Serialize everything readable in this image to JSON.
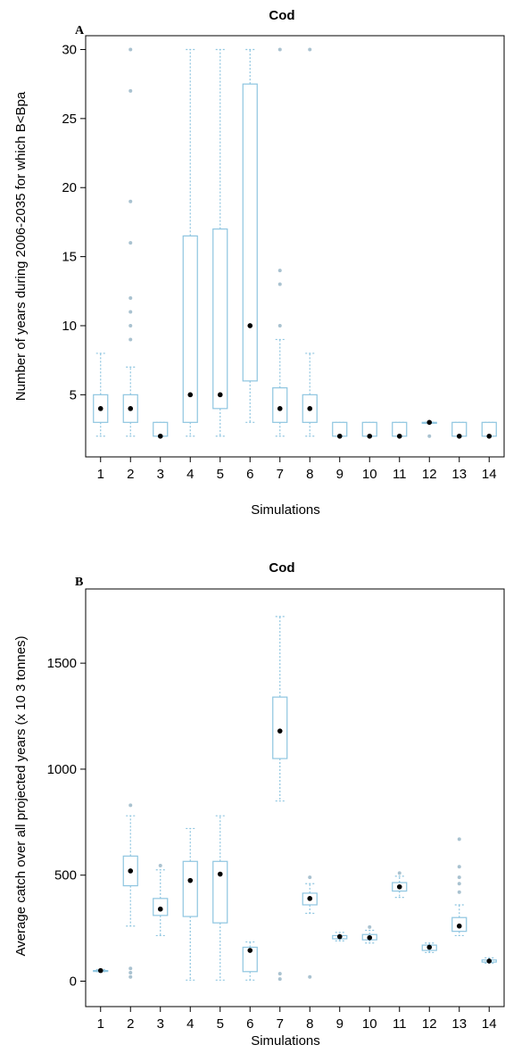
{
  "chart_data": [
    {
      "type": "box",
      "panel_label": "A",
      "title": "Cod",
      "xlabel": "Simulations",
      "ylabel": "Number of years during 2006-2035 for which B<Bpa",
      "categories": [
        "1",
        "2",
        "3",
        "4",
        "5",
        "6",
        "7",
        "8",
        "9",
        "10",
        "11",
        "12",
        "13",
        "14"
      ],
      "ylim": [
        0.5,
        31
      ],
      "yticks": [
        5,
        10,
        15,
        20,
        25,
        30
      ],
      "grid": false,
      "colors": {
        "box": "#8ec5e0",
        "whisker": "#8ec5e0",
        "outlier": "#a9c2d0",
        "median": "#000000"
      },
      "boxes": [
        {
          "q1": 3,
          "q3": 5,
          "median": 4,
          "whisker_low": 2,
          "whisker_high": 8,
          "outliers": []
        },
        {
          "q1": 3,
          "q3": 5,
          "median": 4,
          "whisker_low": 2,
          "whisker_high": 7,
          "outliers": [
            9,
            10,
            11,
            12,
            16,
            19,
            27,
            30
          ]
        },
        {
          "q1": 2,
          "q3": 3,
          "median": 2,
          "whisker_low": 2,
          "whisker_high": 3,
          "outliers": []
        },
        {
          "q1": 3,
          "q3": 16.5,
          "median": 5,
          "whisker_low": 2,
          "whisker_high": 30,
          "outliers": []
        },
        {
          "q1": 4,
          "q3": 17,
          "median": 5,
          "whisker_low": 2,
          "whisker_high": 30,
          "outliers": []
        },
        {
          "q1": 6,
          "q3": 27.5,
          "median": 10,
          "whisker_low": 3,
          "whisker_high": 30,
          "outliers": []
        },
        {
          "q1": 3,
          "q3": 5.5,
          "median": 4,
          "whisker_low": 2,
          "whisker_high": 9,
          "outliers": [
            10,
            13,
            14,
            30
          ]
        },
        {
          "q1": 3,
          "q3": 5,
          "median": 4,
          "whisker_low": 2,
          "whisker_high": 8,
          "outliers": [
            30
          ]
        },
        {
          "q1": 2,
          "q3": 3,
          "median": 2,
          "whisker_low": 2,
          "whisker_high": 3,
          "outliers": []
        },
        {
          "q1": 2,
          "q3": 3,
          "median": 2,
          "whisker_low": 2,
          "whisker_high": 3,
          "outliers": []
        },
        {
          "q1": 2,
          "q3": 3,
          "median": 2,
          "whisker_low": 2,
          "whisker_high": 3,
          "outliers": []
        },
        {
          "q1": 3,
          "q3": 3,
          "median": 3,
          "whisker_low": 3,
          "whisker_high": 3,
          "outliers": [
            2
          ]
        },
        {
          "q1": 2,
          "q3": 3,
          "median": 2,
          "whisker_low": 2,
          "whisker_high": 3,
          "outliers": []
        },
        {
          "q1": 2,
          "q3": 3,
          "median": 2,
          "whisker_low": 2,
          "whisker_high": 3,
          "outliers": []
        }
      ]
    },
    {
      "type": "box",
      "panel_label": "B",
      "title": "Cod",
      "xlabel": "Simulations",
      "ylabel": "Average catch over all projected years (x 10 3 tonnes)",
      "categories": [
        "1",
        "2",
        "3",
        "4",
        "5",
        "6",
        "7",
        "8",
        "9",
        "10",
        "11",
        "12",
        "13",
        "14"
      ],
      "ylim": [
        -120,
        1850
      ],
      "yticks": [
        0,
        500,
        1000,
        1500
      ],
      "grid": false,
      "colors": {
        "box": "#8ec5e0",
        "whisker": "#8ec5e0",
        "outlier": "#a9c2d0",
        "median": "#000000"
      },
      "boxes": [
        {
          "q1": 50,
          "q3": 50,
          "median": 50,
          "whisker_low": 45,
          "whisker_high": 55,
          "outliers": []
        },
        {
          "q1": 450,
          "q3": 590,
          "median": 520,
          "whisker_low": 260,
          "whisker_high": 780,
          "outliers": [
            20,
            40,
            60,
            830
          ]
        },
        {
          "q1": 310,
          "q3": 390,
          "median": 340,
          "whisker_low": 215,
          "whisker_high": 525,
          "outliers": [
            545
          ]
        },
        {
          "q1": 305,
          "q3": 565,
          "median": 475,
          "whisker_low": 5,
          "whisker_high": 720,
          "outliers": []
        },
        {
          "q1": 275,
          "q3": 565,
          "median": 505,
          "whisker_low": 5,
          "whisker_high": 780,
          "outliers": []
        },
        {
          "q1": 45,
          "q3": 160,
          "median": 145,
          "whisker_low": 5,
          "whisker_high": 185,
          "outliers": []
        },
        {
          "q1": 1050,
          "q3": 1340,
          "median": 1180,
          "whisker_low": 850,
          "whisker_high": 1720,
          "outliers": [
            10,
            35
          ]
        },
        {
          "q1": 360,
          "q3": 415,
          "median": 390,
          "whisker_low": 320,
          "whisker_high": 460,
          "outliers": [
            20,
            490
          ]
        },
        {
          "q1": 200,
          "q3": 215,
          "median": 210,
          "whisker_low": 190,
          "whisker_high": 230,
          "outliers": []
        },
        {
          "q1": 195,
          "q3": 220,
          "median": 205,
          "whisker_low": 180,
          "whisker_high": 240,
          "outliers": [
            255
          ]
        },
        {
          "q1": 425,
          "q3": 465,
          "median": 445,
          "whisker_low": 395,
          "whisker_high": 495,
          "outliers": [
            510
          ]
        },
        {
          "q1": 145,
          "q3": 170,
          "median": 160,
          "whisker_low": 135,
          "whisker_high": 180,
          "outliers": []
        },
        {
          "q1": 235,
          "q3": 300,
          "median": 260,
          "whisker_low": 215,
          "whisker_high": 360,
          "outliers": [
            420,
            460,
            490,
            540,
            670
          ]
        },
        {
          "q1": 90,
          "q3": 100,
          "median": 95,
          "whisker_low": 85,
          "whisker_high": 110,
          "outliers": []
        }
      ]
    }
  ]
}
